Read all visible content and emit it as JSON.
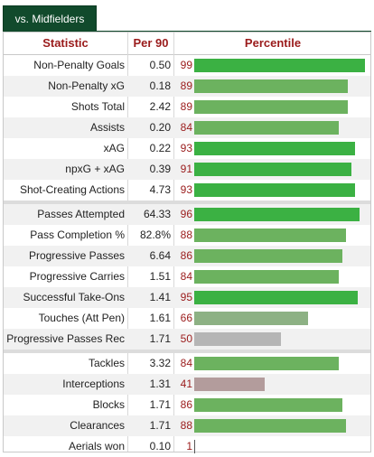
{
  "tab": {
    "label": "vs. Midfielders"
  },
  "headers": {
    "statistic": "Statistic",
    "per90": "Per 90",
    "percentile": "Percentile"
  },
  "colors": {
    "high": "#3bb143",
    "mid": "#6cb25f",
    "low_mid": "#8db184",
    "neutral": "#b5b5b5",
    "low": "#b39c9c"
  },
  "groups": [
    [
      {
        "stat": "Non-Penalty Goals",
        "per90": "0.50",
        "pct": "99"
      },
      {
        "stat": "Non-Penalty xG",
        "per90": "0.18",
        "pct": "89"
      },
      {
        "stat": "Shots Total",
        "per90": "2.42",
        "pct": "89"
      },
      {
        "stat": "Assists",
        "per90": "0.20",
        "pct": "84"
      },
      {
        "stat": "xAG",
        "per90": "0.22",
        "pct": "93"
      },
      {
        "stat": "npxG + xAG",
        "per90": "0.39",
        "pct": "91"
      },
      {
        "stat": "Shot-Creating Actions",
        "per90": "4.73",
        "pct": "93"
      }
    ],
    [
      {
        "stat": "Passes Attempted",
        "per90": "64.33",
        "pct": "96"
      },
      {
        "stat": "Pass Completion %",
        "per90": "82.8%",
        "pct": "88"
      },
      {
        "stat": "Progressive Passes",
        "per90": "6.64",
        "pct": "86"
      },
      {
        "stat": "Progressive Carries",
        "per90": "1.51",
        "pct": "84"
      },
      {
        "stat": "Successful Take-Ons",
        "per90": "1.41",
        "pct": "95"
      },
      {
        "stat": "Touches (Att Pen)",
        "per90": "1.61",
        "pct": "66"
      },
      {
        "stat": "Progressive Passes Rec",
        "per90": "1.71",
        "pct": "50"
      }
    ],
    [
      {
        "stat": "Tackles",
        "per90": "3.32",
        "pct": "84"
      },
      {
        "stat": "Interceptions",
        "per90": "1.31",
        "pct": "41"
      },
      {
        "stat": "Blocks",
        "per90": "1.71",
        "pct": "86"
      },
      {
        "stat": "Clearances",
        "per90": "1.71",
        "pct": "88"
      },
      {
        "stat": "Aerials won",
        "per90": "0.10",
        "pct": "1"
      }
    ]
  ]
}
